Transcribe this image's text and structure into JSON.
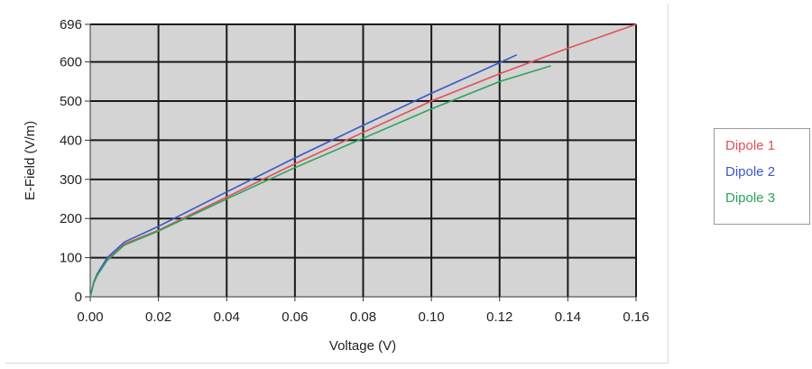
{
  "chart_data": {
    "type": "line",
    "title": "",
    "xlabel": "Voltage (V)",
    "ylabel": "E-Field (V/m)",
    "xlim": [
      0,
      0.16
    ],
    "ylim": [
      0,
      696
    ],
    "x_ticks": [
      "0.00",
      "0.02",
      "0.04",
      "0.06",
      "0.08",
      "0.10",
      "0.12",
      "0.14",
      "0.16"
    ],
    "y_ticks": [
      "0",
      "100",
      "200",
      "300",
      "400",
      "500",
      "600",
      "696"
    ],
    "grid": true,
    "legend_position": "right",
    "series": [
      {
        "name": "Dipole 1",
        "color": "#e0505a",
        "x": [
          0,
          0.001,
          0.002,
          0.005,
          0.01,
          0.02,
          0.04,
          0.06,
          0.08,
          0.1,
          0.12,
          0.14,
          0.16
        ],
        "y": [
          0,
          35,
          55,
          95,
          135,
          170,
          255,
          340,
          420,
          500,
          570,
          635,
          696
        ]
      },
      {
        "name": "Dipole 2",
        "color": "#3a58c8",
        "x": [
          0,
          0.001,
          0.002,
          0.005,
          0.01,
          0.02,
          0.04,
          0.06,
          0.08,
          0.1,
          0.12,
          0.125
        ],
        "y": [
          0,
          37,
          58,
          100,
          140,
          180,
          268,
          355,
          438,
          520,
          598,
          618
        ]
      },
      {
        "name": "Dipole 3",
        "color": "#2aa45a",
        "x": [
          0,
          0.001,
          0.002,
          0.005,
          0.01,
          0.02,
          0.04,
          0.06,
          0.08,
          0.1,
          0.12,
          0.135
        ],
        "y": [
          0,
          34,
          54,
          93,
          132,
          168,
          250,
          330,
          405,
          480,
          550,
          590
        ]
      }
    ]
  }
}
